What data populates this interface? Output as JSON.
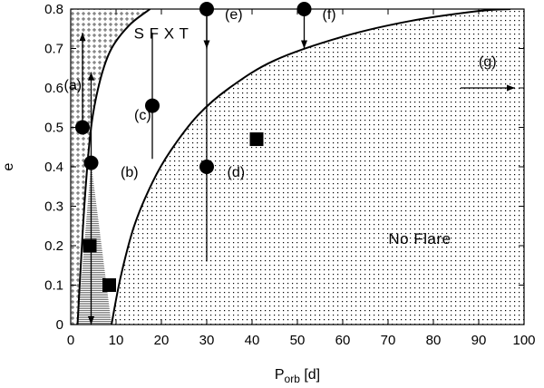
{
  "chart_data": {
    "type": "scatter",
    "xlabel": "P",
    "xlabel_subscript": "orb",
    "xlabel_unit": "[d]",
    "ylabel": "e",
    "xlim": [
      0,
      100
    ],
    "ylim": [
      0,
      0.8
    ],
    "x_ticks": [
      0,
      10,
      20,
      30,
      40,
      50,
      60,
      70,
      80,
      90,
      100
    ],
    "y_ticks": [
      0,
      0.1,
      0.2,
      0.3,
      0.4,
      0.5,
      0.6,
      0.7,
      0.8
    ],
    "x_tick_labels": [
      "0",
      "10",
      "20",
      "30",
      "40",
      "50",
      "60",
      "70",
      "80",
      "90",
      "100"
    ],
    "y_tick_labels": [
      "0",
      "0.1",
      "0.2",
      "0.3",
      "0.4",
      "0.5",
      "0.6",
      "0.7",
      "0.8"
    ],
    "grid": false,
    "legend": "none",
    "curves": {
      "left": [
        [
          1.5,
          0
        ],
        [
          3.0,
          0.3
        ],
        [
          4.5,
          0.5
        ],
        [
          6.5,
          0.62
        ],
        [
          9.0,
          0.7
        ],
        [
          13.0,
          0.76
        ],
        [
          17.5,
          0.8
        ]
      ],
      "right": [
        [
          9.0,
          0
        ],
        [
          11.0,
          0.12
        ],
        [
          14.0,
          0.25
        ],
        [
          18.0,
          0.36
        ],
        [
          22.0,
          0.44
        ],
        [
          28.0,
          0.53
        ],
        [
          35.0,
          0.6
        ],
        [
          45.0,
          0.67
        ],
        [
          60.0,
          0.73
        ],
        [
          75.0,
          0.77
        ],
        [
          90.0,
          0.795
        ],
        [
          97.0,
          0.8
        ]
      ]
    },
    "circles": [
      {
        "x": 2.6,
        "y": 0.5
      },
      {
        "x": 4.5,
        "y": 0.41
      },
      {
        "x": 18.0,
        "y": 0.555
      },
      {
        "x": 30.0,
        "y": 0.4
      },
      {
        "x": 30.0,
        "y": 0.8
      },
      {
        "x": 51.5,
        "y": 0.8
      }
    ],
    "squares": [
      {
        "x": 4.2,
        "y": 0.2
      },
      {
        "x": 8.5,
        "y": 0.1
      },
      {
        "x": 41.0,
        "y": 0.47
      }
    ],
    "arrows": [
      {
        "x1": 2.6,
        "y1": 0.5,
        "x2": 2.6,
        "y2": 0.74
      },
      {
        "x1": 4.5,
        "y1": 0.41,
        "x2": 4.5,
        "y2": 0.64
      },
      {
        "x1": 4.5,
        "y1": 0.41,
        "x2": 4.5,
        "y2": 0.0
      },
      {
        "x1": 30.0,
        "y1": 0.8,
        "x2": 30.0,
        "y2": 0.7
      },
      {
        "x1": 51.5,
        "y1": 0.8,
        "x2": 51.5,
        "y2": 0.7
      },
      {
        "x1": 86.0,
        "y1": 0.6,
        "x2": 98.0,
        "y2": 0.6
      }
    ],
    "error_bars": [
      {
        "x": 18.0,
        "y1": 0.42,
        "y2": 0.74
      },
      {
        "x": 30.0,
        "y1": 0.16,
        "y2": 0.8
      }
    ],
    "annotations": [
      {
        "id": "a",
        "text": "(a)",
        "x": -1.5,
        "y": 0.595
      },
      {
        "id": "b",
        "text": "(b)",
        "x": 11.0,
        "y": 0.375
      },
      {
        "id": "c",
        "text": "(c)",
        "x": 14.0,
        "y": 0.52
      },
      {
        "id": "d",
        "text": "(d)",
        "x": 34.5,
        "y": 0.375
      },
      {
        "id": "e",
        "text": "(e)",
        "x": 34.0,
        "y": 0.775
      },
      {
        "id": "f",
        "text": "(f)",
        "x": 55.5,
        "y": 0.775
      },
      {
        "id": "g",
        "text": "(g)",
        "x": 90.0,
        "y": 0.655
      },
      {
        "id": "sfxt",
        "text": "S F X T",
        "x": 20.0,
        "y": 0.725
      },
      {
        "id": "noflare",
        "text": "No Flare",
        "x": 77.0,
        "y": 0.205
      }
    ]
  }
}
